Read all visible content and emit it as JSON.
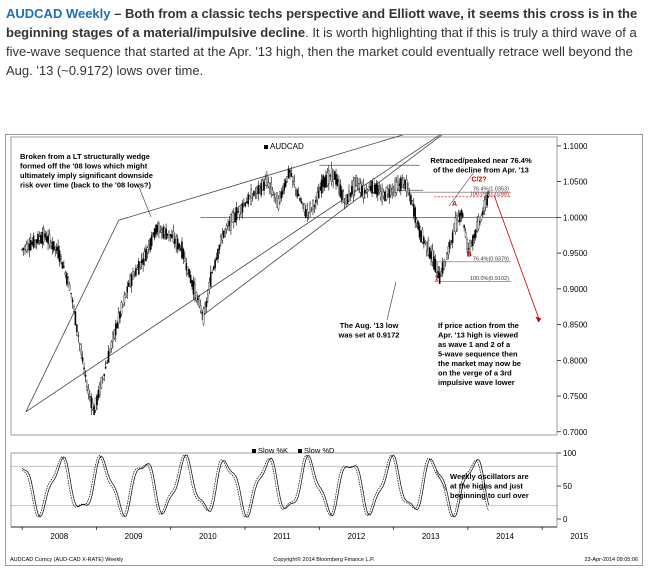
{
  "article": {
    "title": "AUDCAD Weekly",
    "dash": " – ",
    "lead": "Both from a classic techs perspective and Elliott wave, it seems this cross is in the beginning stages of a material/impulsive decline",
    "body": ". It is worth highlighting that if this is truly a third wave of a five-wave sequence that started at the Apr. '13 high, then the market could eventually retrace well beyond the Aug. '13 (~0.9172) lows over time."
  },
  "colors": {
    "title": "#1f6fb2",
    "candles": "#000000",
    "oscillator": "#000000",
    "fib": "#cc0000",
    "arrow": "#cc0000",
    "grid": "#cfcfcf"
  },
  "chart_data": {
    "type": "candlestick",
    "title": "AUDCAD",
    "legend_bottom": [
      "Slow %K",
      "Slow %D"
    ],
    "x_labels": [
      "2008",
      "2009",
      "2010",
      "2011",
      "2012",
      "2013",
      "2014",
      "2015"
    ],
    "y_ticks": [
      "1.1000",
      "1.0500",
      "1.0000",
      "0.9500",
      "0.9000",
      "0.8500",
      "0.8000",
      "0.7500",
      "0.7000"
    ],
    "y_values": [
      1.1,
      1.05,
      1.0,
      0.95,
      0.9,
      0.85,
      0.8,
      0.75,
      0.7
    ],
    "ylim": [
      0.6955,
      1.1125
    ],
    "osc_ticks": [
      "100",
      "50",
      "0"
    ],
    "osc_values": [
      100,
      50,
      0
    ],
    "price_path": [
      [
        2008.0,
        0.955
      ],
      [
        2008.15,
        0.965
      ],
      [
        2008.3,
        0.975
      ],
      [
        2008.5,
        0.95
      ],
      [
        2008.65,
        0.9
      ],
      [
        2008.78,
        0.82
      ],
      [
        2008.88,
        0.76
      ],
      [
        2008.97,
        0.73
      ],
      [
        2009.1,
        0.78
      ],
      [
        2009.25,
        0.84
      ],
      [
        2009.45,
        0.91
      ],
      [
        2009.65,
        0.945
      ],
      [
        2009.8,
        0.985
      ],
      [
        2010.0,
        0.975
      ],
      [
        2010.15,
        0.955
      ],
      [
        2010.25,
        0.92
      ],
      [
        2010.38,
        0.88
      ],
      [
        2010.45,
        0.86
      ],
      [
        2010.55,
        0.92
      ],
      [
        2010.7,
        0.975
      ],
      [
        2010.85,
        1.0
      ],
      [
        2011.0,
        1.02
      ],
      [
        2011.15,
        1.035
      ],
      [
        2011.3,
        1.05
      ],
      [
        2011.45,
        1.02
      ],
      [
        2011.6,
        1.065
      ],
      [
        2011.72,
        1.03
      ],
      [
        2011.83,
        1.005
      ],
      [
        2011.95,
        1.02
      ],
      [
        2012.05,
        1.05
      ],
      [
        2012.2,
        1.06
      ],
      [
        2012.35,
        1.02
      ],
      [
        2012.5,
        1.05
      ],
      [
        2012.6,
        1.035
      ],
      [
        2012.72,
        1.045
      ],
      [
        2012.85,
        1.03
      ],
      [
        2013.0,
        1.04
      ],
      [
        2013.15,
        1.05
      ],
      [
        2013.25,
        1.02
      ],
      [
        2013.35,
        0.98
      ],
      [
        2013.5,
        0.95
      ],
      [
        2013.62,
        0.9172
      ],
      [
        2013.72,
        0.945
      ],
      [
        2013.82,
        0.985
      ],
      [
        2013.92,
        1.01
      ],
      [
        2014.0,
        0.955
      ],
      [
        2014.07,
        0.97
      ],
      [
        2014.18,
        1.0
      ],
      [
        2014.28,
        1.032
      ]
    ],
    "levels": [
      {
        "label": "100.0%(1.0288)",
        "value": 1.0288,
        "x_from": 2013.55,
        "x_to": 2014.58,
        "style": "dashed-red"
      },
      {
        "label": "76.4%(1.0353)",
        "value": 1.0353,
        "x_from": 2013.2,
        "x_to": 2014.58,
        "style": "thin"
      },
      {
        "label": "76.4%(0.9379)",
        "value": 0.9379,
        "x_from": 2013.6,
        "x_to": 2014.58,
        "style": "thin"
      },
      {
        "label": "100.0%(0.9102)",
        "value": 0.9102,
        "x_from": 2013.55,
        "x_to": 2014.58,
        "style": "thin"
      }
    ],
    "wave_labels": [
      {
        "text": "1",
        "x": 2013.58,
        "y": 0.912
      },
      {
        "text": "A",
        "x": 2013.82,
        "y": 1.016
      },
      {
        "text": "B",
        "x": 2014.02,
        "y": 0.945
      },
      {
        "text": "C/2?",
        "x": 2014.15,
        "y": 1.05
      }
    ],
    "annotations": [
      {
        "text": [
          "Broken from a LT structurally wedge",
          "formed off the '08 lows which might",
          "ultimately imply significant downside",
          "risk over time (back to the '08 lows?)"
        ]
      },
      {
        "text": [
          "Retraced/peaked near 76.4%",
          "of the decline from Apr. '13"
        ]
      },
      {
        "text": [
          "The Aug. '13 low",
          "was set at 0.9172"
        ]
      },
      {
        "text": [
          "If price action from the",
          "Apr. '13 high is viewed",
          "as wave 1 and 2 of a",
          "5-wave sequence then",
          "the market may now be",
          "on the verge of a 3rd",
          "impulsive wave lower"
        ]
      },
      {
        "text": [
          "Weekly oscillators are",
          "at the highs and just",
          "beginning to curl over"
        ]
      }
    ],
    "footer_left": "AUDCAD Curncy (AUD-CAD X-RATE) Weekly",
    "footer_center": "Copyright© 2014 Bloomberg Finance L.P.",
    "footer_right": "23-Apr-2014 09:05:06"
  }
}
